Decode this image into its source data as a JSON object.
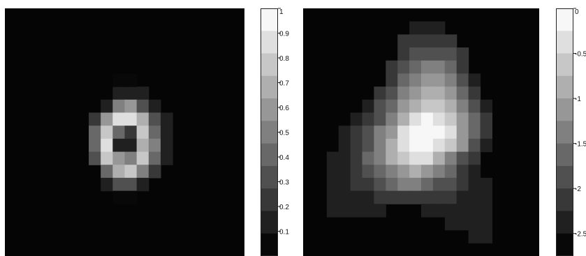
{
  "chart_data": [
    {
      "type": "heatmap",
      "name_hint": "left",
      "grid_size": [
        19,
        20
      ],
      "colorbar": {
        "ticks": [
          "0.1",
          "0.2",
          "0.3",
          "0.4",
          "0.5",
          "0.6",
          "0.7",
          "0.8",
          "0.9",
          "1"
        ],
        "range": [
          0,
          1
        ],
        "levels": 11,
        "colormap": "gray-stepped"
      },
      "cells": [
        {
          "r": 6,
          "c": 9,
          "v": 0.07
        },
        {
          "r": 6,
          "c": 10,
          "v": 0.08
        },
        {
          "r": 6,
          "c": 11,
          "v": 0.05
        },
        {
          "r": 7,
          "c": 8,
          "v": 0.12
        },
        {
          "r": 7,
          "c": 9,
          "v": 0.45
        },
        {
          "r": 7,
          "c": 10,
          "v": 0.62
        },
        {
          "r": 7,
          "c": 11,
          "v": 0.3
        },
        {
          "r": 7,
          "c": 12,
          "v": 0.08
        },
        {
          "r": 8,
          "c": 7,
          "v": 0.15
        },
        {
          "r": 8,
          "c": 8,
          "v": 0.55
        },
        {
          "r": 8,
          "c": 9,
          "v": 0.85
        },
        {
          "r": 8,
          "c": 10,
          "v": 0.92
        },
        {
          "r": 8,
          "c": 11,
          "v": 0.65
        },
        {
          "r": 8,
          "c": 12,
          "v": 0.25
        },
        {
          "r": 8,
          "c": 13,
          "v": 0.06
        },
        {
          "r": 9,
          "c": 7,
          "v": 0.35
        },
        {
          "r": 9,
          "c": 8,
          "v": 0.8
        },
        {
          "r": 9,
          "c": 9,
          "v": 0.35
        },
        {
          "r": 9,
          "c": 10,
          "v": 0.15
        },
        {
          "r": 9,
          "c": 11,
          "v": 0.75
        },
        {
          "r": 9,
          "c": 12,
          "v": 0.4
        },
        {
          "r": 9,
          "c": 13,
          "v": 0.1
        },
        {
          "r": 10,
          "c": 7,
          "v": 0.4
        },
        {
          "r": 10,
          "c": 8,
          "v": 0.85
        },
        {
          "r": 10,
          "c": 9,
          "v": 0.12
        },
        {
          "r": 10,
          "c": 10,
          "v": 0.08
        },
        {
          "r": 10,
          "c": 11,
          "v": 0.7
        },
        {
          "r": 10,
          "c": 12,
          "v": 0.45
        },
        {
          "r": 10,
          "c": 13,
          "v": 0.12
        },
        {
          "r": 11,
          "c": 7,
          "v": 0.3
        },
        {
          "r": 11,
          "c": 8,
          "v": 0.75
        },
        {
          "r": 11,
          "c": 9,
          "v": 0.55
        },
        {
          "r": 11,
          "c": 10,
          "v": 0.45
        },
        {
          "r": 11,
          "c": 11,
          "v": 0.8
        },
        {
          "r": 11,
          "c": 12,
          "v": 0.35
        },
        {
          "r": 11,
          "c": 13,
          "v": 0.08
        },
        {
          "r": 12,
          "c": 8,
          "v": 0.35
        },
        {
          "r": 12,
          "c": 9,
          "v": 0.7
        },
        {
          "r": 12,
          "c": 10,
          "v": 0.78
        },
        {
          "r": 12,
          "c": 11,
          "v": 0.5
        },
        {
          "r": 12,
          "c": 12,
          "v": 0.15
        },
        {
          "r": 13,
          "c": 8,
          "v": 0.1
        },
        {
          "r": 13,
          "c": 9,
          "v": 0.25
        },
        {
          "r": 13,
          "c": 10,
          "v": 0.28
        },
        {
          "r": 13,
          "c": 11,
          "v": 0.12
        },
        {
          "r": 5,
          "c": 9,
          "v": 0.03
        },
        {
          "r": 5,
          "c": 10,
          "v": 0.03
        },
        {
          "r": 14,
          "c": 9,
          "v": 0.04
        },
        {
          "r": 14,
          "c": 10,
          "v": 0.04
        }
      ]
    },
    {
      "type": "heatmap",
      "name_hint": "right",
      "grid_size": [
        19,
        20
      ],
      "colorbar": {
        "ticks": [
          "0",
          "-0.5",
          "-1",
          "-1.5",
          "-2",
          "-2.5"
        ],
        "range": [
          -2.75,
          0
        ],
        "levels": 11,
        "colormap": "gray-stepped"
      },
      "cells_by_row": [
        {
          "r": 1,
          "c0": 9,
          "vals": [
            -2.45,
            -2.45,
            -2.45
          ]
        },
        {
          "r": 2,
          "c0": 8,
          "vals": [
            -2.3,
            -2.1,
            -2.1,
            -2.1,
            -2.3
          ]
        },
        {
          "r": 3,
          "c0": 8,
          "vals": [
            -2.1,
            -1.9,
            -1.8,
            -1.8,
            -2.0,
            -2.3
          ]
        },
        {
          "r": 4,
          "c0": 7,
          "vals": [
            -2.3,
            -1.9,
            -1.6,
            -1.5,
            -1.5,
            -1.7,
            -2.1
          ]
        },
        {
          "r": 5,
          "c0": 7,
          "vals": [
            -2.1,
            -1.7,
            -1.4,
            -1.2,
            -1.2,
            -1.4,
            -1.9,
            -2.4
          ]
        },
        {
          "r": 6,
          "c0": 6,
          "vals": [
            -2.3,
            -1.8,
            -1.4,
            -1.0,
            -0.9,
            -0.9,
            -1.1,
            -1.6,
            -2.1
          ]
        },
        {
          "r": 7,
          "c0": 5,
          "vals": [
            -2.4,
            -2.0,
            -1.6,
            -1.1,
            -0.7,
            -0.5,
            -0.5,
            -0.8,
            -1.3,
            -1.9,
            -2.4
          ]
        },
        {
          "r": 8,
          "c0": 4,
          "vals": [
            -2.4,
            -2.2,
            -1.8,
            -1.3,
            -0.8,
            -0.2,
            -0.1,
            -0.2,
            -0.5,
            -1.1,
            -1.7,
            -2.3
          ]
        },
        {
          "r": 9,
          "c0": 3,
          "vals": [
            -2.5,
            -2.3,
            -2.0,
            -1.5,
            -1.0,
            -0.3,
            0.0,
            0.0,
            -0.1,
            -0.4,
            -1.0,
            -1.6,
            -2.2
          ]
        },
        {
          "r": 10,
          "c0": 3,
          "vals": [
            -2.4,
            -2.2,
            -1.9,
            -1.4,
            -0.9,
            -0.4,
            -0.1,
            0.0,
            -0.2,
            -0.6,
            -1.2,
            -1.8,
            -2.4
          ]
        },
        {
          "r": 11,
          "c0": 2,
          "vals": [
            -2.5,
            -2.4,
            -2.1,
            -1.7,
            -1.3,
            -0.9,
            -0.5,
            -0.3,
            -0.4,
            -0.8,
            -1.4,
            -1.9,
            -2.3
          ]
        },
        {
          "r": 12,
          "c0": 2,
          "vals": [
            -2.5,
            -2.4,
            -2.2,
            -1.9,
            -1.6,
            -1.3,
            -1.0,
            -0.9,
            -1.0,
            -1.3,
            -1.7,
            -2.1,
            -2.4
          ]
        },
        {
          "r": 13,
          "c0": 2,
          "vals": [
            -2.5,
            -2.4,
            -2.3,
            -2.1,
            -1.9,
            -1.7,
            -1.5,
            -1.5,
            -1.6,
            -1.8,
            -2.0,
            -2.2,
            -2.4,
            -2.5
          ]
        },
        {
          "r": 14,
          "c0": 2,
          "vals": [
            -2.6,
            -2.5,
            -2.5,
            -2.4,
            -2.3,
            -2.2,
            -2.1,
            -2.1,
            -2.2,
            -2.3,
            -2.3,
            -2.4,
            -2.5,
            -2.5
          ]
        },
        {
          "r": 15,
          "c0": 2,
          "vals": [
            -2.6,
            -2.6,
            -2.6,
            -2.5,
            -2.5
          ]
        },
        {
          "r": 15,
          "c0": 10,
          "vals": [
            -2.5,
            -2.5,
            -2.4,
            -2.5,
            -2.5,
            -2.6
          ]
        },
        {
          "r": 16,
          "c0": 12,
          "vals": [
            -2.5,
            -2.5,
            -2.6,
            -2.6
          ]
        },
        {
          "r": 17,
          "c0": 14,
          "vals": [
            -2.6,
            -2.6
          ]
        }
      ]
    }
  ]
}
